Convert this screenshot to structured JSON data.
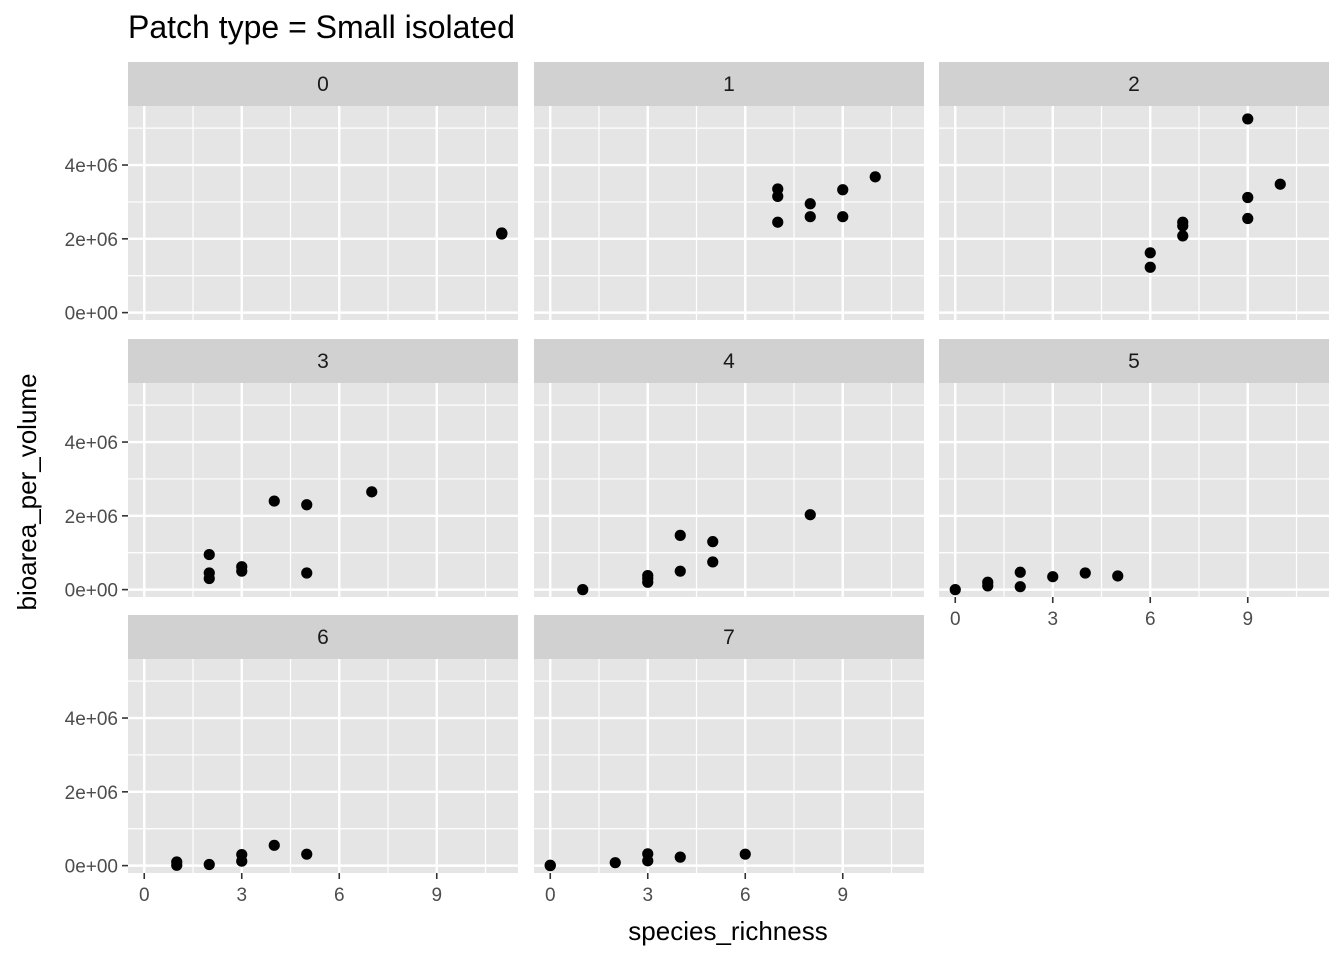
{
  "title": "Patch type = Small isolated",
  "colors": {
    "panel_bg": "#e5e5e5",
    "grid": "#ffffff",
    "strip_bg": "#d1d1d1",
    "point": "#000000",
    "tick": "#333333"
  },
  "chart_data": {
    "type": "scatter",
    "title": "Patch type = Small isolated",
    "xlabel": "species_richness",
    "ylabel": "bioarea_per_volume",
    "xlim": [
      -0.5,
      11.5
    ],
    "ylim": [
      -200000,
      5600000
    ],
    "x_ticks": [
      0,
      3,
      6,
      9
    ],
    "x_tick_labels": [
      "0",
      "3",
      "6",
      "9"
    ],
    "y_ticks": [
      0,
      2000000,
      4000000
    ],
    "y_tick_labels": [
      "0e+00",
      "2e+06",
      "4e+06"
    ],
    "grid": true,
    "facets": [
      {
        "label": "0",
        "points": [
          [
            11,
            2150000
          ],
          [
            11,
            2130000
          ],
          [
            11,
            2160000
          ],
          [
            11,
            2140000
          ]
        ]
      },
      {
        "label": "1",
        "points": [
          [
            7,
            3350000
          ],
          [
            7,
            3150000
          ],
          [
            7,
            2450000
          ],
          [
            8,
            2950000
          ],
          [
            8,
            2600000
          ],
          [
            9,
            3330000
          ],
          [
            9,
            2600000
          ],
          [
            10,
            3680000
          ]
        ]
      },
      {
        "label": "2",
        "points": [
          [
            6,
            1620000
          ],
          [
            6,
            1230000
          ],
          [
            7,
            2450000
          ],
          [
            7,
            2350000
          ],
          [
            7,
            2080000
          ],
          [
            9,
            5250000
          ],
          [
            9,
            3120000
          ],
          [
            9,
            2550000
          ],
          [
            10,
            3480000
          ]
        ]
      },
      {
        "label": "3",
        "points": [
          [
            2,
            950000
          ],
          [
            2,
            450000
          ],
          [
            2,
            300000
          ],
          [
            3,
            620000
          ],
          [
            3,
            500000
          ],
          [
            4,
            2400000
          ],
          [
            5,
            2300000
          ],
          [
            5,
            450000
          ],
          [
            7,
            2650000
          ]
        ]
      },
      {
        "label": "4",
        "points": [
          [
            1,
            0
          ],
          [
            3,
            380000
          ],
          [
            3,
            300000
          ],
          [
            3,
            200000
          ],
          [
            4,
            1470000
          ],
          [
            4,
            500000
          ],
          [
            5,
            1300000
          ],
          [
            5,
            750000
          ],
          [
            8,
            2030000
          ]
        ]
      },
      {
        "label": "5",
        "points": [
          [
            0,
            0
          ],
          [
            1,
            200000
          ],
          [
            1,
            100000
          ],
          [
            2,
            470000
          ],
          [
            2,
            80000
          ],
          [
            3,
            350000
          ],
          [
            4,
            450000
          ],
          [
            5,
            370000
          ]
        ]
      },
      {
        "label": "6",
        "points": [
          [
            1,
            100000
          ],
          [
            1,
            10000
          ],
          [
            2,
            30000
          ],
          [
            3,
            300000
          ],
          [
            3,
            120000
          ],
          [
            4,
            550000
          ],
          [
            5,
            310000
          ]
        ]
      },
      {
        "label": "7",
        "points": [
          [
            0,
            0
          ],
          [
            0,
            10000
          ],
          [
            2,
            80000
          ],
          [
            3,
            320000
          ],
          [
            3,
            130000
          ],
          [
            4,
            230000
          ],
          [
            6,
            310000
          ]
        ]
      }
    ]
  }
}
